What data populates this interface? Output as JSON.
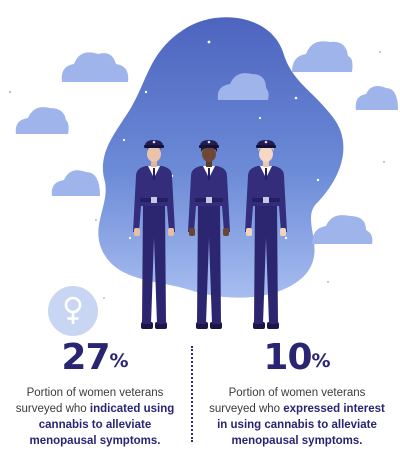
{
  "icons": {
    "badge": "female-symbol-icon"
  },
  "colors": {
    "blob": "#5d7cc9",
    "cloud": "#9fb4ea",
    "uniform": "#332d7c",
    "accent": "#2a2573",
    "badge_bg": "#c9d6f3"
  },
  "stats": [
    {
      "value": "27",
      "unit": "%",
      "text_before": "Portion of women veterans surveyed who ",
      "highlight": "indicated using cannabis to alleviate menopausal symptoms.",
      "text_after": ""
    },
    {
      "value": "10",
      "unit": "%",
      "text_before": "Portion of women veterans surveyed who ",
      "highlight": "expressed interest in using cannabis to alleviate menopausal symptoms.",
      "text_after": ""
    }
  ]
}
